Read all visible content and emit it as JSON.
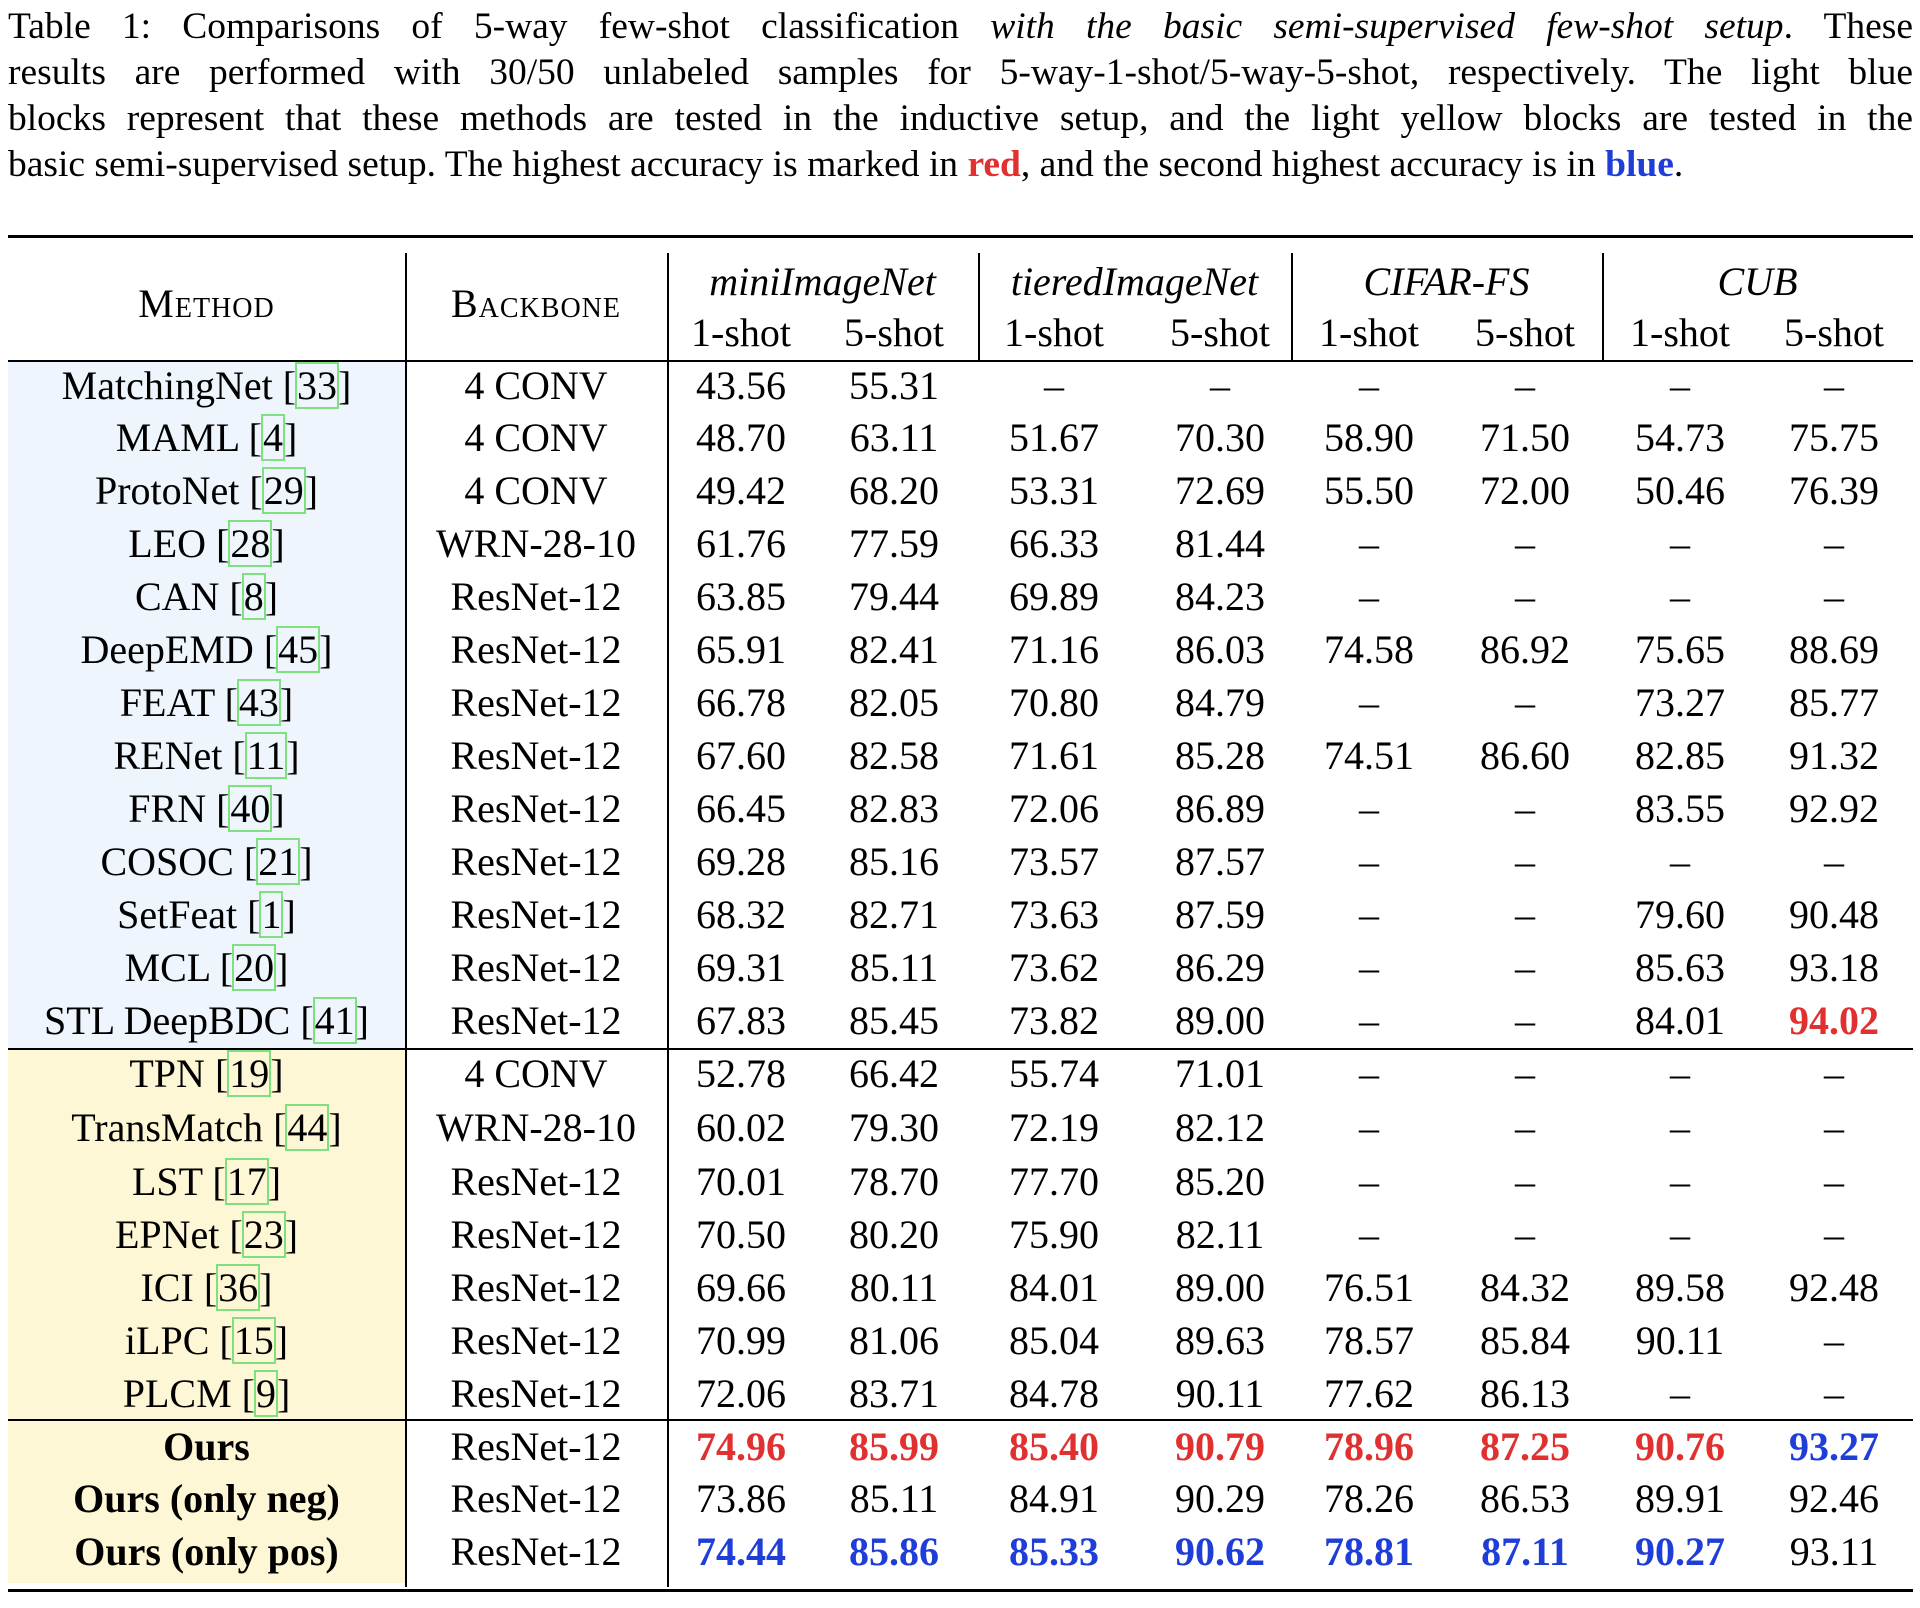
{
  "caption": {
    "line1_a": "Table 1: Comparisons of 5-way few-shot classification ",
    "line1_italic": "with the basic semi-supervised few-shot setup",
    "line1_b": ". These",
    "line2": "results are performed with 30/50 unlabeled samples for 5-way-1-shot/5-way-5-shot, respectively. The light blue",
    "line3": "blocks represent that these methods are tested in the inductive setup, and the light yellow blocks are tested in the",
    "line4_a": "basic semi-supervised setup. The highest accuracy is marked in ",
    "line4_red": "red",
    "line4_b": ", and the second highest accuracy is in ",
    "line4_blue": "blue",
    "line4_c": "."
  },
  "colors": {
    "red": "#e03030",
    "blue": "#1f3ed8",
    "inductive_bg": "#eef5fc",
    "semi_bg": "#fdf7d5",
    "ref_box": "#7ee07e"
  },
  "table": {
    "headers": {
      "method": "Method",
      "backbone": "Backbone",
      "datasets": [
        "miniImageNet",
        "tieredImageNet",
        "CIFAR-FS",
        "CUB"
      ],
      "shots": [
        "1-shot",
        "5-shot",
        "1-shot",
        "5-shot",
        "1-shot",
        "5-shot",
        "1-shot",
        "5-shot"
      ]
    },
    "rows": [
      {
        "group": "inductive",
        "name": "MatchingNet ",
        "ref": "33",
        "backbone": "4 CONV",
        "values": [
          "43.56",
          "55.31",
          "–",
          "–",
          "–",
          "–",
          "–",
          "–"
        ],
        "marks": [
          "",
          "",
          "",
          "",
          "",
          "",
          "",
          ""
        ]
      },
      {
        "group": "inductive",
        "name": "MAML ",
        "ref": "4",
        "backbone": "4 CONV",
        "values": [
          "48.70",
          "63.11",
          "51.67",
          "70.30",
          "58.90",
          "71.50",
          "54.73",
          "75.75"
        ],
        "marks": [
          "",
          "",
          "",
          "",
          "",
          "",
          "",
          ""
        ]
      },
      {
        "group": "inductive",
        "name": "ProtoNet ",
        "ref": "29",
        "backbone": "4 CONV",
        "values": [
          "49.42",
          "68.20",
          "53.31",
          "72.69",
          "55.50",
          "72.00",
          "50.46",
          "76.39"
        ],
        "marks": [
          "",
          "",
          "",
          "",
          "",
          "",
          "",
          ""
        ]
      },
      {
        "group": "inductive",
        "name": "LEO ",
        "ref": "28",
        "backbone": "WRN-28-10",
        "values": [
          "61.76",
          "77.59",
          "66.33",
          "81.44",
          "–",
          "–",
          "–",
          "–"
        ],
        "marks": [
          "",
          "",
          "",
          "",
          "",
          "",
          "",
          ""
        ]
      },
      {
        "group": "inductive",
        "name": "CAN ",
        "ref": "8",
        "backbone": "ResNet-12",
        "values": [
          "63.85",
          "79.44",
          "69.89",
          "84.23",
          "–",
          "–",
          "–",
          "–"
        ],
        "marks": [
          "",
          "",
          "",
          "",
          "",
          "",
          "",
          ""
        ]
      },
      {
        "group": "inductive",
        "name": "DeepEMD ",
        "ref": "45",
        "backbone": "ResNet-12",
        "values": [
          "65.91",
          "82.41",
          "71.16",
          "86.03",
          "74.58",
          "86.92",
          "75.65",
          "88.69"
        ],
        "marks": [
          "",
          "",
          "",
          "",
          "",
          "",
          "",
          ""
        ]
      },
      {
        "group": "inductive",
        "name": "FEAT ",
        "ref": "43",
        "backbone": "ResNet-12",
        "values": [
          "66.78",
          "82.05",
          "70.80",
          "84.79",
          "–",
          "–",
          "73.27",
          "85.77"
        ],
        "marks": [
          "",
          "",
          "",
          "",
          "",
          "",
          "",
          ""
        ]
      },
      {
        "group": "inductive",
        "name": "RENet ",
        "ref": "11",
        "backbone": "ResNet-12",
        "values": [
          "67.60",
          "82.58",
          "71.61",
          "85.28",
          "74.51",
          "86.60",
          "82.85",
          "91.32"
        ],
        "marks": [
          "",
          "",
          "",
          "",
          "",
          "",
          "",
          ""
        ]
      },
      {
        "group": "inductive",
        "name": "FRN ",
        "ref": "40",
        "backbone": "ResNet-12",
        "values": [
          "66.45",
          "82.83",
          "72.06",
          "86.89",
          "–",
          "–",
          "83.55",
          "92.92"
        ],
        "marks": [
          "",
          "",
          "",
          "",
          "",
          "",
          "",
          ""
        ]
      },
      {
        "group": "inductive",
        "name": "COSOC ",
        "ref": "21",
        "backbone": "ResNet-12",
        "values": [
          "69.28",
          "85.16",
          "73.57",
          "87.57",
          "–",
          "–",
          "–",
          "–"
        ],
        "marks": [
          "",
          "",
          "",
          "",
          "",
          "",
          "",
          ""
        ]
      },
      {
        "group": "inductive",
        "name": "SetFeat ",
        "ref": "1",
        "backbone": "ResNet-12",
        "values": [
          "68.32",
          "82.71",
          "73.63",
          "87.59",
          "–",
          "–",
          "79.60",
          "90.48"
        ],
        "marks": [
          "",
          "",
          "",
          "",
          "",
          "",
          "",
          ""
        ]
      },
      {
        "group": "inductive",
        "name": "MCL ",
        "ref": "20",
        "backbone": "ResNet-12",
        "values": [
          "69.31",
          "85.11",
          "73.62",
          "86.29",
          "–",
          "–",
          "85.63",
          "93.18"
        ],
        "marks": [
          "",
          "",
          "",
          "",
          "",
          "",
          "",
          ""
        ]
      },
      {
        "group": "inductive",
        "name": "STL DeepBDC ",
        "ref": "41",
        "backbone": "ResNet-12",
        "values": [
          "67.83",
          "85.45",
          "73.82",
          "89.00",
          "–",
          "–",
          "84.01",
          "94.02"
        ],
        "marks": [
          "",
          "",
          "",
          "",
          "",
          "",
          "",
          "red"
        ]
      },
      {
        "group": "semi",
        "name": "TPN ",
        "ref": "19",
        "backbone": "4 CONV",
        "values": [
          "52.78",
          "66.42",
          "55.74",
          "71.01",
          "–",
          "–",
          "–",
          "–"
        ],
        "marks": [
          "",
          "",
          "",
          "",
          "",
          "",
          "",
          ""
        ]
      },
      {
        "group": "semi",
        "name": "TransMatch ",
        "ref": "44",
        "backbone": "WRN-28-10",
        "values": [
          "60.02",
          "79.30",
          "72.19",
          "82.12",
          "–",
          "–",
          "–",
          "–"
        ],
        "marks": [
          "",
          "",
          "",
          "",
          "",
          "",
          "",
          ""
        ]
      },
      {
        "group": "semi",
        "name": "LST ",
        "ref": "17",
        "backbone": "ResNet-12",
        "values": [
          "70.01",
          "78.70",
          "77.70",
          "85.20",
          "–",
          "–",
          "–",
          "–"
        ],
        "marks": [
          "",
          "",
          "",
          "",
          "",
          "",
          "",
          ""
        ]
      },
      {
        "group": "semi",
        "name": "EPNet ",
        "ref": "23",
        "backbone": "ResNet-12",
        "values": [
          "70.50",
          "80.20",
          "75.90",
          "82.11",
          "–",
          "–",
          "–",
          "–"
        ],
        "marks": [
          "",
          "",
          "",
          "",
          "",
          "",
          "",
          ""
        ]
      },
      {
        "group": "semi",
        "name": "ICI ",
        "ref": "36",
        "backbone": "ResNet-12",
        "values": [
          "69.66",
          "80.11",
          "84.01",
          "89.00",
          "76.51",
          "84.32",
          "89.58",
          "92.48"
        ],
        "marks": [
          "",
          "",
          "",
          "",
          "",
          "",
          "",
          ""
        ]
      },
      {
        "group": "semi",
        "name": "iLPC ",
        "ref": "15",
        "backbone": "ResNet-12",
        "values": [
          "70.99",
          "81.06",
          "85.04",
          "89.63",
          "78.57",
          "85.84",
          "90.11",
          "–"
        ],
        "marks": [
          "",
          "",
          "",
          "",
          "",
          "",
          "",
          ""
        ]
      },
      {
        "group": "semi",
        "name": "PLCM ",
        "ref": "9",
        "backbone": "ResNet-12",
        "values": [
          "72.06",
          "83.71",
          "84.78",
          "90.11",
          "77.62",
          "86.13",
          "–",
          "–"
        ],
        "marks": [
          "",
          "",
          "",
          "",
          "",
          "",
          "",
          ""
        ]
      },
      {
        "group": "ours",
        "name": "Ours",
        "ref": "",
        "backbone": "ResNet-12",
        "values": [
          "74.96",
          "85.99",
          "85.40",
          "90.79",
          "78.96",
          "87.25",
          "90.76",
          "93.27"
        ],
        "marks": [
          "red",
          "red",
          "red",
          "red",
          "red",
          "red",
          "red",
          "blue"
        ]
      },
      {
        "group": "ours",
        "name": "Ours (only neg)",
        "ref": "",
        "backbone": "ResNet-12",
        "values": [
          "73.86",
          "85.11",
          "84.91",
          "90.29",
          "78.26",
          "86.53",
          "89.91",
          "92.46"
        ],
        "marks": [
          "",
          "",
          "",
          "",
          "",
          "",
          "",
          ""
        ]
      },
      {
        "group": "ours",
        "name": "Ours (only pos)",
        "ref": "",
        "backbone": "ResNet-12",
        "values": [
          "74.44",
          "85.86",
          "85.33",
          "90.62",
          "78.81",
          "87.11",
          "90.27",
          "93.11"
        ],
        "marks": [
          "blue",
          "blue",
          "blue",
          "blue",
          "blue",
          "blue",
          "blue",
          ""
        ]
      }
    ]
  }
}
